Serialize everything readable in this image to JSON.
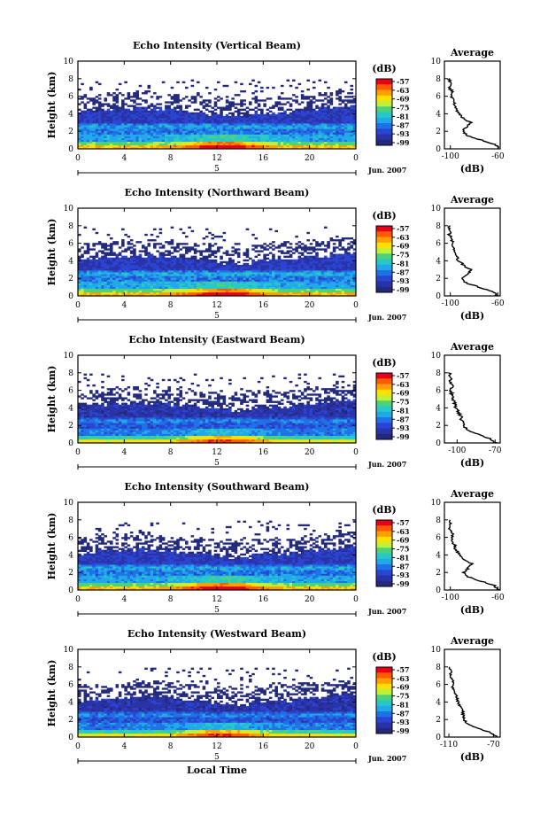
{
  "figure": {
    "common_xlabel": "Local Time",
    "date_label": "Jun. 2007",
    "day_marker": "5",
    "colorbar_unit": "(dB)",
    "colorbar_ticks": [
      "-57",
      "-63",
      "-69",
      "-75",
      "-81",
      "-87",
      "-93",
      "-99"
    ],
    "colorbar_colors": [
      "#e6001a",
      "#ff5a00",
      "#ff9e00",
      "#ffe000",
      "#bff03a",
      "#4cd27a",
      "#28c8c8",
      "#20a8e8",
      "#1f72e6",
      "#2a45d2",
      "#2a32a8",
      "#232a7c"
    ]
  },
  "chart_data": [
    {
      "type": "heatmap",
      "title": "Echo Intensity (Vertical Beam)",
      "xlabel": "",
      "ylabel": "Height (km)",
      "x_ticks": [
        "0",
        "4",
        "8",
        "12",
        "16",
        "20",
        "0"
      ],
      "y_ticks": [
        "0",
        "2",
        "4",
        "6",
        "8",
        "10"
      ],
      "xlim": [
        0,
        24
      ],
      "ylim": [
        0,
        10
      ],
      "colorbar": {
        "label": "(dB)",
        "range": [
          -99,
          -57
        ]
      },
      "profile": {
        "title": "Average",
        "xlabel": "(dB)",
        "x_ticks": [
          "-100",
          "-60"
        ],
        "xlim": [
          -105,
          -58
        ],
        "height": [
          0,
          0.5,
          1,
          1.5,
          2,
          2.5,
          3,
          3.5,
          4,
          4.5,
          5,
          5.5,
          6,
          6.5,
          7,
          7.5,
          8
        ],
        "value": [
          -59,
          -62,
          -74,
          -86,
          -90,
          -86,
          -83,
          -89,
          -93,
          -95,
          -96,
          -98,
          -99,
          -98,
          -101,
          -100,
          -101
        ]
      }
    },
    {
      "type": "heatmap",
      "title": "Echo Intensity (Northward Beam)",
      "xlabel": "",
      "ylabel": "Height (km)",
      "x_ticks": [
        "0",
        "4",
        "8",
        "12",
        "16",
        "20",
        "0"
      ],
      "y_ticks": [
        "0",
        "2",
        "4",
        "6",
        "8",
        "10"
      ],
      "xlim": [
        0,
        24
      ],
      "ylim": [
        0,
        10
      ],
      "colorbar": {
        "label": "(dB)",
        "range": [
          -99,
          -57
        ]
      },
      "profile": {
        "title": "Average",
        "xlabel": "(dB)",
        "x_ticks": [
          "-100",
          "-60"
        ],
        "xlim": [
          -105,
          -58
        ],
        "height": [
          0,
          0.5,
          1,
          1.5,
          2,
          2.5,
          3,
          3.5,
          4,
          4.5,
          5,
          5.5,
          6,
          6.5,
          7,
          7.5,
          8
        ],
        "value": [
          -60,
          -64,
          -76,
          -87,
          -90,
          -85,
          -83,
          -89,
          -93,
          -95,
          -96,
          -98,
          -99,
          -98,
          -101,
          -100,
          -101
        ]
      }
    },
    {
      "type": "heatmap",
      "title": "Echo Intensity (Eastward Beam)",
      "xlabel": "",
      "ylabel": "Height (km)",
      "x_ticks": [
        "0",
        "4",
        "8",
        "12",
        "16",
        "20",
        "0"
      ],
      "y_ticks": [
        "0",
        "2",
        "4",
        "6",
        "8",
        "10"
      ],
      "xlim": [
        0,
        24
      ],
      "ylim": [
        0,
        10
      ],
      "colorbar": {
        "label": "(dB)",
        "range": [
          -99,
          -57
        ]
      },
      "profile": {
        "title": "Average",
        "xlabel": "(dB)",
        "x_ticks": [
          "-100",
          "-70"
        ],
        "xlim": [
          -110,
          -66
        ],
        "height": [
          0,
          0.5,
          1,
          1.5,
          2,
          2.5,
          3,
          3.5,
          4,
          4.5,
          5,
          5.5,
          6,
          6.5,
          7,
          7.5,
          8
        ],
        "value": [
          -69,
          -74,
          -84,
          -92,
          -95,
          -96,
          -97,
          -99,
          -101,
          -102,
          -103,
          -104,
          -105,
          -104,
          -106,
          -105,
          -106
        ]
      }
    },
    {
      "type": "heatmap",
      "title": "Echo Intensity (Southward Beam)",
      "xlabel": "",
      "ylabel": "Height (km)",
      "x_ticks": [
        "0",
        "4",
        "8",
        "12",
        "16",
        "20",
        "0"
      ],
      "y_ticks": [
        "0",
        "2",
        "4",
        "6",
        "8",
        "10"
      ],
      "xlim": [
        0,
        24
      ],
      "ylim": [
        0,
        10
      ],
      "colorbar": {
        "label": "(dB)",
        "range": [
          -99,
          -57
        ]
      },
      "profile": {
        "title": "Average",
        "xlabel": "(dB)",
        "x_ticks": [
          "-100",
          "-60"
        ],
        "xlim": [
          -105,
          -58
        ],
        "height": [
          0,
          0.5,
          1,
          1.5,
          2,
          2.5,
          3,
          3.5,
          4,
          4.5,
          5,
          5.5,
          6,
          6.5,
          7,
          7.5,
          8
        ],
        "value": [
          -59,
          -63,
          -74,
          -85,
          -89,
          -85,
          -82,
          -88,
          -92,
          -95,
          -96,
          -98,
          -99,
          -98,
          -101,
          -100,
          -101
        ]
      }
    },
    {
      "type": "heatmap",
      "title": "Echo Intensity (Westward Beam)",
      "xlabel": "Local Time",
      "ylabel": "Height (km)",
      "x_ticks": [
        "0",
        "4",
        "8",
        "12",
        "16",
        "20",
        "0"
      ],
      "y_ticks": [
        "0",
        "2",
        "4",
        "6",
        "8",
        "10"
      ],
      "xlim": [
        0,
        24
      ],
      "ylim": [
        0,
        10
      ],
      "colorbar": {
        "label": "(dB)",
        "range": [
          -99,
          -57
        ]
      },
      "profile": {
        "title": "Average",
        "xlabel": "(dB)",
        "x_ticks": [
          "-110",
          "-70"
        ],
        "xlim": [
          -114,
          -64
        ],
        "height": [
          0,
          0.5,
          1,
          1.5,
          2,
          2.5,
          3,
          3.5,
          4,
          4.5,
          5,
          5.5,
          6,
          6.5,
          7,
          7.5,
          8
        ],
        "value": [
          -67,
          -72,
          -84,
          -93,
          -97,
          -97,
          -98,
          -100,
          -102,
          -103,
          -104,
          -106,
          -107,
          -106,
          -109,
          -108,
          -109
        ]
      }
    }
  ]
}
